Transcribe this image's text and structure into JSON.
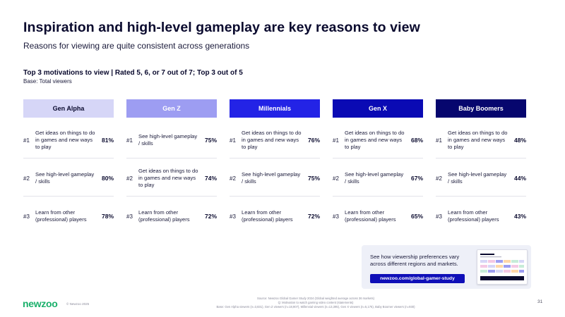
{
  "slide": {
    "title": "Inspiration and high-level gameplay are key reasons to view",
    "subtitle": "Reasons for viewing are quite consistent across generations",
    "section_title": "Top 3 motivations to view | Rated 5, 6, or 7 out of 7; Top 3 out of 5",
    "section_base": "Base: Total viewers"
  },
  "generations": [
    {
      "name": "Gen Alpha",
      "header_bg": "#d6d6f7",
      "header_fg": "#0a0a2e",
      "rows": [
        {
          "rank": "#1",
          "reason": "Get ideas on things to do in games and new ways to play",
          "pct": "81%"
        },
        {
          "rank": "#2",
          "reason": "See high-level gameplay / skills",
          "pct": "80%"
        },
        {
          "rank": "#3",
          "reason": "Learn from other (professional) players",
          "pct": "78%"
        }
      ]
    },
    {
      "name": "Gen Z",
      "header_bg": "#9d9df2",
      "header_fg": "#ffffff",
      "rows": [
        {
          "rank": "#1",
          "reason": "See high-level gameplay / skills",
          "pct": "75%"
        },
        {
          "rank": "#2",
          "reason": "Get ideas on things to do in games and new ways to play",
          "pct": "74%"
        },
        {
          "rank": "#3",
          "reason": "Learn from other (professional) players",
          "pct": "72%"
        }
      ]
    },
    {
      "name": "Millennials",
      "header_bg": "#2323e6",
      "header_fg": "#ffffff",
      "rows": [
        {
          "rank": "#1",
          "reason": "Get ideas on things to do in games and new ways to play",
          "pct": "76%"
        },
        {
          "rank": "#2",
          "reason": "See high-level gameplay / skills",
          "pct": "75%"
        },
        {
          "rank": "#3",
          "reason": "Learn from other (professional) players",
          "pct": "72%"
        }
      ]
    },
    {
      "name": "Gen X",
      "header_bg": "#0a0ab4",
      "header_fg": "#ffffff",
      "rows": [
        {
          "rank": "#1",
          "reason": "Get ideas on things to do in games and new ways to play",
          "pct": "68%"
        },
        {
          "rank": "#2",
          "reason": "See high-level gameplay / skills",
          "pct": "67%"
        },
        {
          "rank": "#3",
          "reason": "Learn from other (professional) players",
          "pct": "65%"
        }
      ]
    },
    {
      "name": "Baby Boomers",
      "header_bg": "#06066e",
      "header_fg": "#ffffff",
      "rows": [
        {
          "rank": "#1",
          "reason": "Get ideas on things to do in games and new ways to play",
          "pct": "48%"
        },
        {
          "rank": "#2",
          "reason": "See high-level gameplay / skills",
          "pct": "44%"
        },
        {
          "rank": "#3",
          "reason": "Learn from other (professional) players",
          "pct": "43%"
        }
      ]
    }
  ],
  "promo": {
    "text": "See how viewership preferences vary across different regions and markets.",
    "button_label": "newzoo.com/global-gamer-study"
  },
  "footer": {
    "logo": "newzoo",
    "copyright": "© Newzoo 2025",
    "source_line1": "Source: Newzoo Global Gamer Study 2024 (Global weighted average across 36 markets)",
    "source_line2": "Q: Motivation to watch gaming video content (statements)",
    "source_line3": "Base: Gen Alpha viewers (n=3,831), Gen Z viewers (n=18,907), Millennial viewers (n=13,395), Gen X viewers (n=5,175), Baby Boomer viewers (n=930)",
    "page_number": "31"
  },
  "colors": {
    "brand_green": "#1ab06b",
    "accent_blue": "#0f0fb8",
    "text_dark": "#0a0a2e"
  }
}
